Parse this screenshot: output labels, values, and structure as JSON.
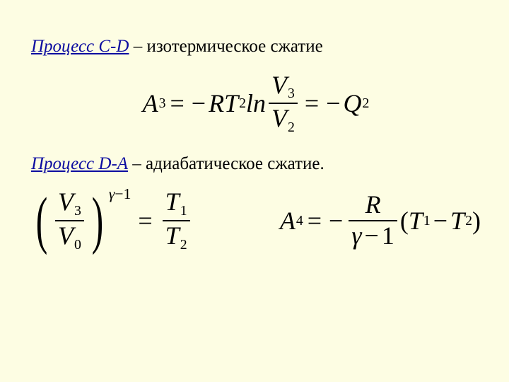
{
  "background_color": "#fdfde3",
  "text_color": "#000000",
  "accent_color": "#0c0ca0",
  "body_fontsize_pt": 19,
  "formula_fontsize_pt": 27,
  "line1": {
    "label": "Процесс C-D",
    "rest": " – изотермическое сжатие"
  },
  "formula1": {
    "lhs_var": "A",
    "lhs_sub": "3",
    "rhs1_neg": "−",
    "rhs1_R": "R",
    "rhs1_T": "T",
    "rhs1_Tsub": "2",
    "rhs1_ln": "ln",
    "rhs1_num_var": "V",
    "rhs1_num_sub": "3",
    "rhs1_den_var": "V",
    "rhs1_den_sub": "2",
    "rhs2_neg": "−",
    "rhs2_Q": "Q",
    "rhs2_Qsub": "2",
    "eq": "="
  },
  "line2": {
    "label": "Процесс D-A",
    "rest": " – адиабатическое сжатие."
  },
  "formula2a": {
    "lparen": "(",
    "rparen": ")",
    "num_var": "V",
    "num_sub": "3",
    "den_var": "V",
    "den_sub": "0",
    "exp_g": "γ",
    "exp_minus": "−",
    "exp_one": "1",
    "eq": "=",
    "rnum_var": "T",
    "rnum_sub": "1",
    "rden_var": "T",
    "rden_sub": "2"
  },
  "formula2b": {
    "lhs_var": "A",
    "lhs_sub": "4",
    "eq": "=",
    "neg": "−",
    "frac_num": "R",
    "frac_den_g": "γ",
    "frac_den_minus": "−",
    "frac_den_one": "1",
    "lparen": "(",
    "rparen": ")",
    "t1_var": "T",
    "t1_sub": "1",
    "mid_minus": "−",
    "t2_var": "T",
    "t2_sub": "2"
  }
}
